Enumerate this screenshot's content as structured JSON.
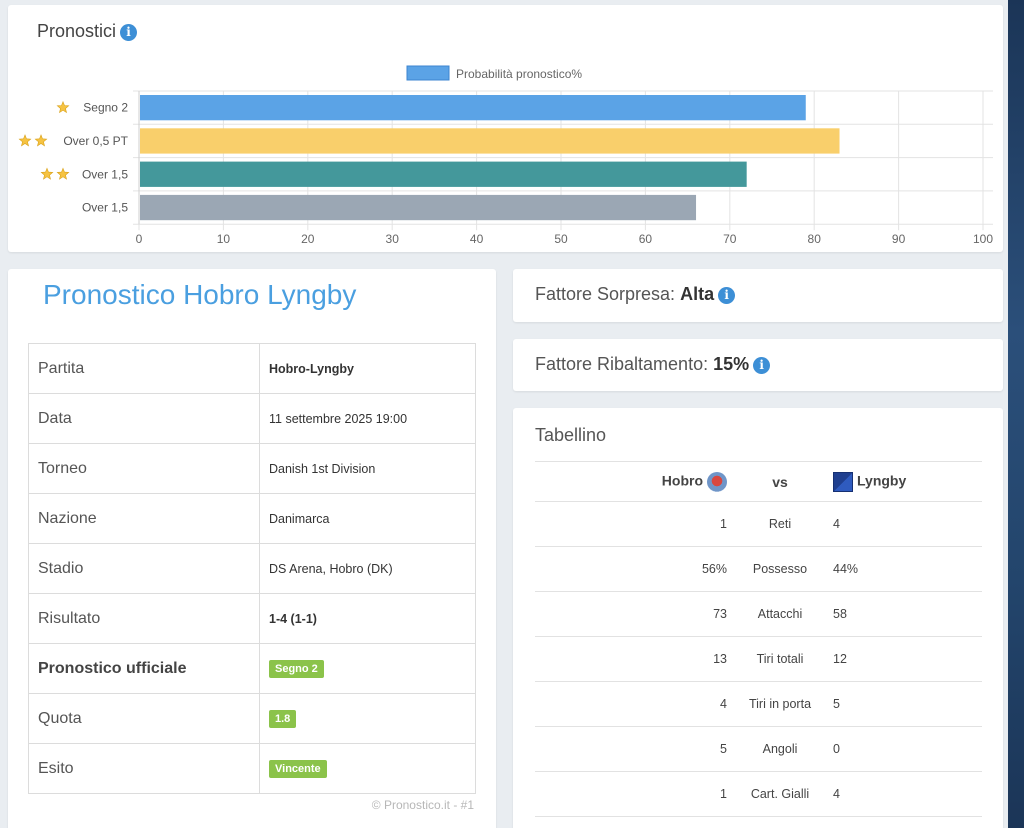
{
  "chart_section": {
    "title": "Pronostici"
  },
  "chart_data": {
    "type": "bar",
    "orientation": "horizontal",
    "legend": "Probabilità pronostico%",
    "legend_position": "top",
    "categories": [
      {
        "label": "Segno 2",
        "stars": 1
      },
      {
        "label": "Over 0,5 PT",
        "stars": 2
      },
      {
        "label": "Over 1,5",
        "stars": 2
      },
      {
        "label": "Over 1,5",
        "stars": 0
      }
    ],
    "series": [
      {
        "values": [
          79,
          83,
          72,
          66
        ]
      }
    ],
    "colors": [
      "#5ba3e6",
      "#f9cf6b",
      "#44989b",
      "#9ba7b4"
    ],
    "xlim": [
      0,
      100
    ],
    "xticks": [
      "0",
      "10",
      "20",
      "30",
      "40",
      "50",
      "60",
      "70",
      "80",
      "90",
      "100"
    ],
    "grid": true
  },
  "match": {
    "title": "Pronostico Hobro Lyngby",
    "rows": [
      {
        "label": "Partita",
        "value": "Hobro-Lyngby",
        "style": "bold"
      },
      {
        "label": "Data",
        "value": "11 settembre 2025 19:00",
        "style": "normal"
      },
      {
        "label": "Torneo",
        "value": "Danish 1st Division",
        "style": "normal"
      },
      {
        "label": "Nazione",
        "value": "Danimarca",
        "style": "normal"
      },
      {
        "label": "Stadio",
        "value": "DS Arena, Hobro (DK)",
        "style": "normal"
      },
      {
        "label": "Risultato",
        "value": "1-4 (1-1)",
        "style": "bold"
      },
      {
        "label": "Pronostico ufficiale",
        "value": "Segno 2",
        "style": "badge",
        "label_bold": true
      },
      {
        "label": "Quota",
        "value": "1.8",
        "style": "badge"
      },
      {
        "label": "Esito",
        "value": "Vincente",
        "style": "badge"
      }
    ],
    "copyright": "© Pronostico.it - #1"
  },
  "sorpresa": {
    "label": "Fattore Sorpresa:",
    "value": "Alta"
  },
  "ribaltamento": {
    "label": "Fattore Ribaltamento:",
    "value": "15%"
  },
  "tabellino": {
    "title": "Tabellino",
    "home": "Hobro",
    "vs": "vs",
    "away": "Lyngby",
    "stats": [
      {
        "home": "1",
        "label": "Reti",
        "away": "4"
      },
      {
        "home": "56%",
        "label": "Possesso",
        "away": "44%"
      },
      {
        "home": "73",
        "label": "Attacchi",
        "away": "58"
      },
      {
        "home": "13",
        "label": "Tiri totali",
        "away": "12"
      },
      {
        "home": "4",
        "label": "Tiri in porta",
        "away": "5"
      },
      {
        "home": "5",
        "label": "Angoli",
        "away": "0"
      },
      {
        "home": "1",
        "label": "Cart. Gialli",
        "away": "4"
      }
    ]
  },
  "colors": {
    "accent": "#4a9fe0",
    "badge": "#8bc34a",
    "info": "#3d8fd6"
  }
}
